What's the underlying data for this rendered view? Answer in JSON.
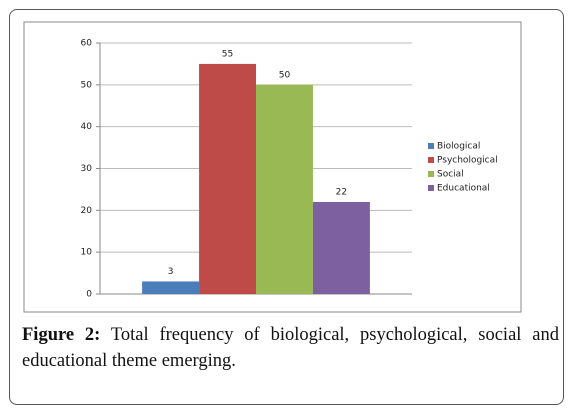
{
  "chart_data": {
    "type": "bar",
    "categories": [
      null
    ],
    "series": [
      {
        "name": "Biological",
        "color": "#4a7ebb",
        "values": [
          3
        ]
      },
      {
        "name": "Psychological",
        "color": "#be4b48",
        "values": [
          55
        ]
      },
      {
        "name": "Social",
        "color": "#98b954",
        "values": [
          50
        ]
      },
      {
        "name": "Educational",
        "color": "#7d60a0",
        "values": [
          22
        ]
      }
    ],
    "ylim": [
      0,
      60
    ],
    "yticks": [
      0,
      10,
      20,
      30,
      40,
      50,
      60
    ],
    "grid": true,
    "legend": "right"
  },
  "caption": {
    "label": "Figure 2:",
    "text": "Total frequency of biological, psychological, social and educational theme emerging."
  }
}
